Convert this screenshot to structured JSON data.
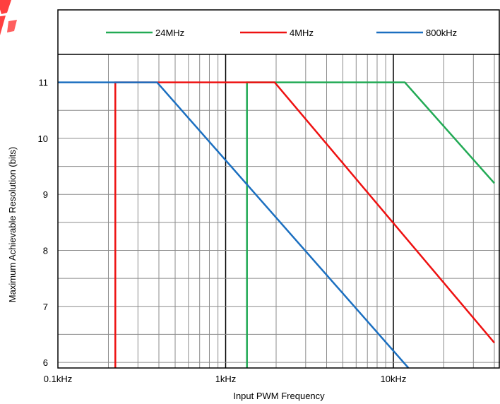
{
  "chart_data": {
    "type": "line",
    "title": "",
    "xlabel": "Input PWM Frequency",
    "ylabel": "Maximum Achievable Resolution (bits)",
    "x_scale": "log",
    "xlim_hz": [
      100,
      40000
    ],
    "ylim": [
      5.9,
      11.5
    ],
    "x_tick_labels": [
      {
        "label": "0.1kHz",
        "value_hz": 100
      },
      {
        "label": "1kHz",
        "value_hz": 1000
      },
      {
        "label": "10kHz",
        "value_hz": 10000
      }
    ],
    "y_tick_labels": [
      {
        "label": "6",
        "value": 6
      },
      {
        "label": "7",
        "value": 7
      },
      {
        "label": "8",
        "value": 8
      },
      {
        "label": "9",
        "value": 9
      },
      {
        "label": "10",
        "value": 10
      },
      {
        "label": "11",
        "value": 11
      }
    ],
    "grid": true,
    "legend_position": "top",
    "series": [
      {
        "name": "24MHz",
        "color": "#22aa55",
        "points": [
          [
            1340,
            5.9
          ],
          [
            1340,
            11
          ],
          [
            11700,
            11
          ],
          [
            40000,
            9.2
          ]
        ]
      },
      {
        "name": "4MHz",
        "color": "#ee1111",
        "points": [
          [
            220,
            5.9
          ],
          [
            220,
            11
          ],
          [
            1960,
            11
          ],
          [
            40000,
            6.35
          ]
        ]
      },
      {
        "name": "800kHz",
        "color": "#1b6fc0",
        "points": [
          [
            100,
            11
          ],
          [
            390,
            11
          ],
          [
            12300,
            5.9
          ]
        ]
      }
    ]
  }
}
